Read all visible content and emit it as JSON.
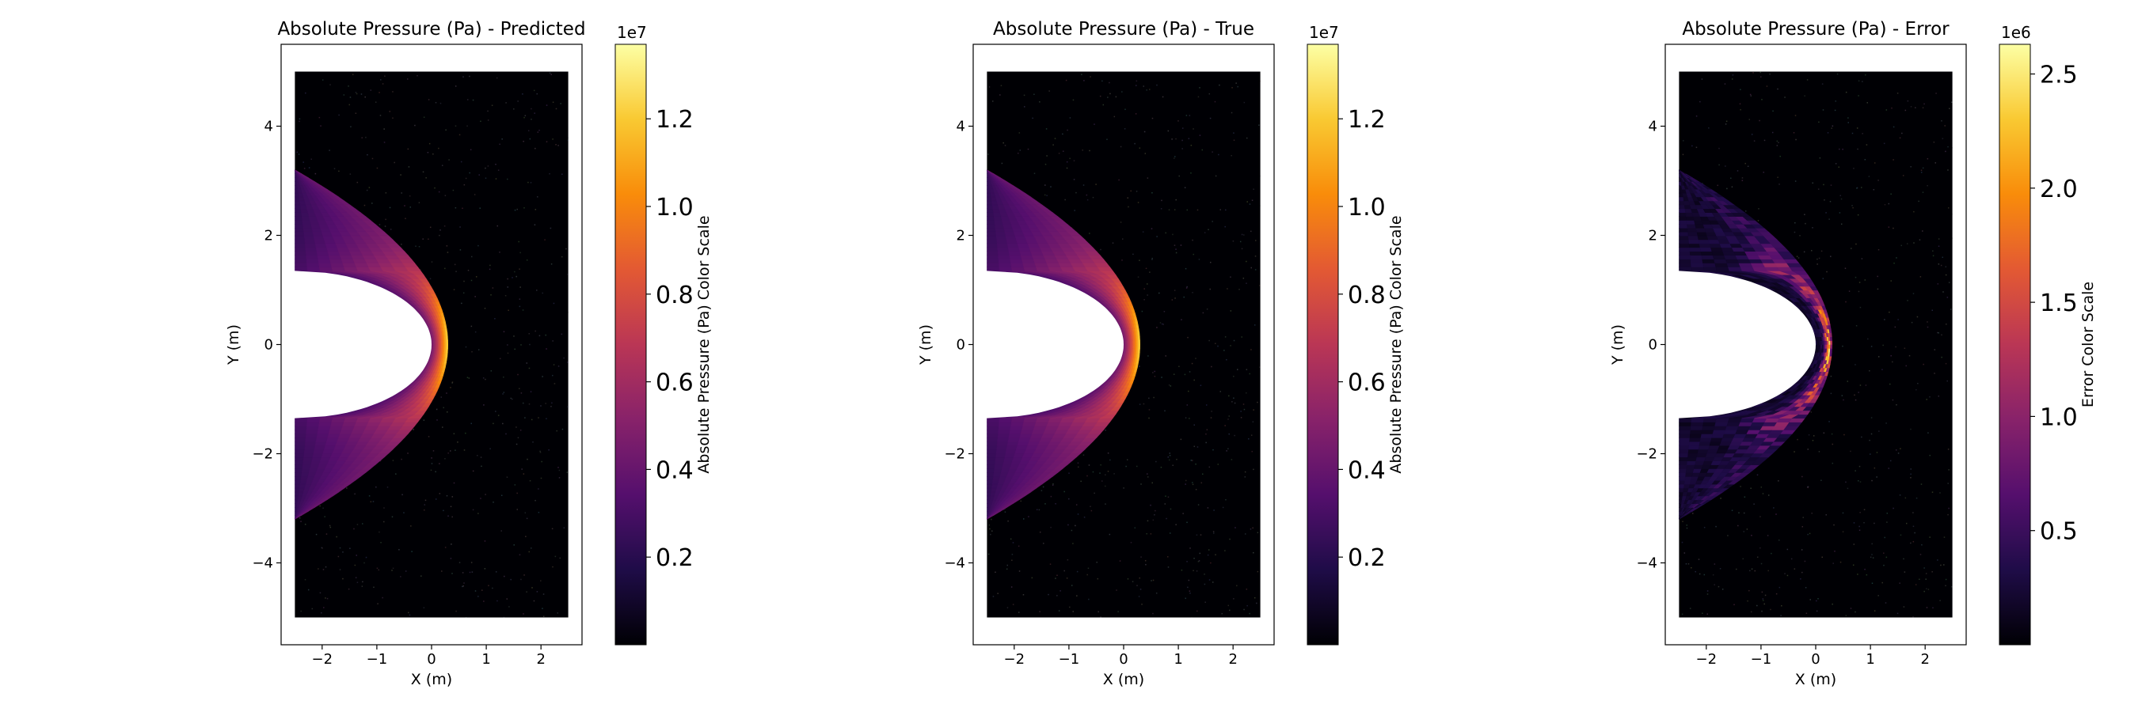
{
  "colormap": "inferno",
  "colors": {
    "background": "#ffffff",
    "field_background": "#000004",
    "cutout": "#ffffff",
    "axes": "#000000"
  },
  "chart_data": [
    {
      "type": "heatmap",
      "title": "Absolute Pressure (Pa) - Predicted",
      "xlabel": "X (m)",
      "ylabel": "Y (m)",
      "xlim": [
        -2.75,
        2.75
      ],
      "ylim": [
        -5.5,
        5.5
      ],
      "domain_x": [
        -2.5,
        2.5
      ],
      "domain_y": [
        -5.0,
        5.0
      ],
      "body": {
        "shape": "half-ellipse",
        "nose_x": 0.0,
        "base_x": -2.5,
        "half_height": 1.35
      },
      "shock": {
        "apex_x": 0.3,
        "edge_y": 3.2
      },
      "field_pattern": "bow-shock",
      "xticks": [
        -2,
        -1,
        0,
        1,
        2
      ],
      "xtick_labels": [
        "−2",
        "−1",
        "0",
        "1",
        "2"
      ],
      "yticks": [
        -4,
        -2,
        0,
        2,
        4
      ],
      "ytick_labels": [
        "−4",
        "−2",
        "0",
        "2",
        "4"
      ],
      "colorbar": {
        "label": "Absolute Pressure (Pa) Color Scale",
        "exponent": "1e7",
        "min": 0.0,
        "max": 1.37,
        "ticks": [
          0.2,
          0.4,
          0.6,
          0.8,
          1.0,
          1.2
        ],
        "tick_labels": [
          "0.2",
          "0.4",
          "0.6",
          "0.8",
          "1.0",
          "1.2"
        ]
      }
    },
    {
      "type": "heatmap",
      "title": "Absolute Pressure (Pa) - True",
      "xlabel": "X (m)",
      "ylabel": "Y (m)",
      "xlim": [
        -2.75,
        2.75
      ],
      "ylim": [
        -5.5,
        5.5
      ],
      "domain_x": [
        -2.5,
        2.5
      ],
      "domain_y": [
        -5.0,
        5.0
      ],
      "body": {
        "shape": "half-ellipse",
        "nose_x": 0.0,
        "base_x": -2.5,
        "half_height": 1.35
      },
      "shock": {
        "apex_x": 0.3,
        "edge_y": 3.2
      },
      "field_pattern": "bow-shock",
      "xticks": [
        -2,
        -1,
        0,
        1,
        2
      ],
      "xtick_labels": [
        "−2",
        "−1",
        "0",
        "1",
        "2"
      ],
      "yticks": [
        -4,
        -2,
        0,
        2,
        4
      ],
      "ytick_labels": [
        "−4",
        "−2",
        "0",
        "2",
        "4"
      ],
      "colorbar": {
        "label": "Absolute Pressure (Pa) Color Scale",
        "exponent": "1e7",
        "min": 0.0,
        "max": 1.37,
        "ticks": [
          0.2,
          0.4,
          0.6,
          0.8,
          1.0,
          1.2
        ],
        "tick_labels": [
          "0.2",
          "0.4",
          "0.6",
          "0.8",
          "1.0",
          "1.2"
        ]
      }
    },
    {
      "type": "heatmap",
      "title": "Absolute Pressure (Pa) - Error",
      "xlabel": "X (m)",
      "ylabel": "Y (m)",
      "xlim": [
        -2.75,
        2.75
      ],
      "ylim": [
        -5.5,
        5.5
      ],
      "domain_x": [
        -2.5,
        2.5
      ],
      "domain_y": [
        -5.0,
        5.0
      ],
      "body": {
        "shape": "half-ellipse",
        "nose_x": 0.0,
        "base_x": -2.5,
        "half_height": 1.35
      },
      "shock": {
        "apex_x": 0.3,
        "edge_y": 3.2
      },
      "field_pattern": "shock-error",
      "xticks": [
        -2,
        -1,
        0,
        1,
        2
      ],
      "xtick_labels": [
        "−2",
        "−1",
        "0",
        "1",
        "2"
      ],
      "yticks": [
        -4,
        -2,
        0,
        2,
        4
      ],
      "ytick_labels": [
        "−4",
        "−2",
        "0",
        "2",
        "4"
      ],
      "colorbar": {
        "label": "Error Color Scale",
        "exponent": "1e6",
        "min": 0.0,
        "max": 2.63,
        "ticks": [
          0.5,
          1.0,
          1.5,
          2.0,
          2.5
        ],
        "tick_labels": [
          "0.5",
          "1.0",
          "1.5",
          "2.0",
          "2.5"
        ]
      }
    }
  ]
}
